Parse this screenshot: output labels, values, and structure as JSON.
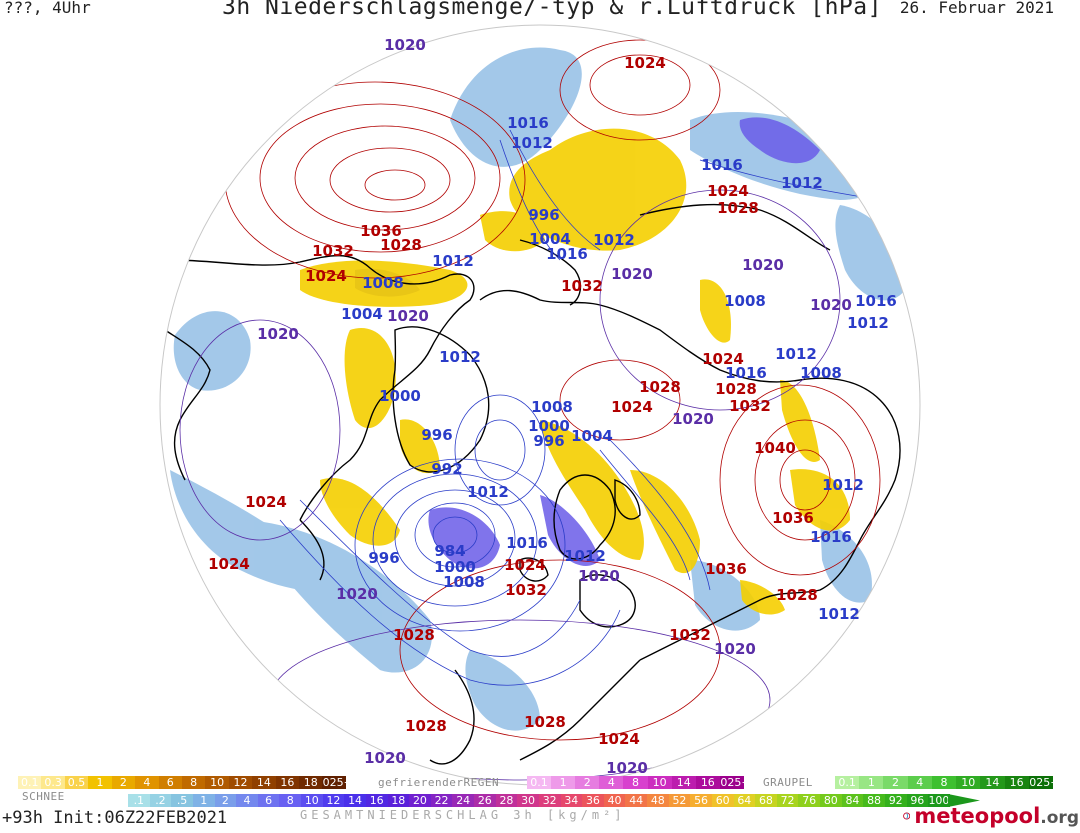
{
  "header": {
    "left": "???, 4Uhr",
    "title": "3h Niederschlagsmenge/-typ & r.Luftdruck [hPa]",
    "date": "26. Februar 2021"
  },
  "map": {
    "isobars": [
      {
        "text": "1020",
        "c": "p"
      },
      {
        "text": "1024",
        "c": "r"
      },
      {
        "text": "1016",
        "c": "b"
      },
      {
        "text": "1012",
        "c": "b"
      },
      {
        "text": "1016",
        "c": "b"
      },
      {
        "text": "1024",
        "c": "r"
      },
      {
        "text": "1012",
        "c": "b"
      },
      {
        "text": "1028",
        "c": "r"
      },
      {
        "text": "996",
        "c": "b"
      },
      {
        "text": "1036",
        "c": "r"
      },
      {
        "text": "1028",
        "c": "r"
      },
      {
        "text": "1004",
        "c": "b"
      },
      {
        "text": "1012",
        "c": "b"
      },
      {
        "text": "1032",
        "c": "r"
      },
      {
        "text": "1016",
        "c": "b"
      },
      {
        "text": "1012",
        "c": "b"
      },
      {
        "text": "1020",
        "c": "p"
      },
      {
        "text": "1024",
        "c": "r"
      },
      {
        "text": "1008",
        "c": "b"
      },
      {
        "text": "1032",
        "c": "r"
      },
      {
        "text": "1020",
        "c": "p"
      },
      {
        "text": "1016",
        "c": "b"
      },
      {
        "text": "1012",
        "c": "b"
      },
      {
        "text": "1004",
        "c": "b"
      },
      {
        "text": "1020",
        "c": "p"
      },
      {
        "text": "1020",
        "c": "p"
      },
      {
        "text": "1008",
        "c": "b"
      },
      {
        "text": "1020",
        "c": "p"
      },
      {
        "text": "1012",
        "c": "b"
      },
      {
        "text": "1024",
        "c": "r"
      },
      {
        "text": "1012",
        "c": "b"
      },
      {
        "text": "1016",
        "c": "b"
      },
      {
        "text": "1008",
        "c": "b"
      },
      {
        "text": "1000",
        "c": "b"
      },
      {
        "text": "1028",
        "c": "r"
      },
      {
        "text": "1028",
        "c": "r"
      },
      {
        "text": "1024",
        "c": "r"
      },
      {
        "text": "1032",
        "c": "r"
      },
      {
        "text": "1008",
        "c": "b"
      },
      {
        "text": "1020",
        "c": "p"
      },
      {
        "text": "1000",
        "c": "b"
      },
      {
        "text": "996",
        "c": "b"
      },
      {
        "text": "1004",
        "c": "b"
      },
      {
        "text": "996",
        "c": "b"
      },
      {
        "text": "1040",
        "c": "r"
      },
      {
        "text": "992",
        "c": "b"
      },
      {
        "text": "1012",
        "c": "b"
      },
      {
        "text": "1024",
        "c": "r"
      },
      {
        "text": "1012",
        "c": "b"
      },
      {
        "text": "1036",
        "c": "r"
      },
      {
        "text": "996",
        "c": "b"
      },
      {
        "text": "984",
        "c": "b"
      },
      {
        "text": "1016",
        "c": "b"
      },
      {
        "text": "1016",
        "c": "b"
      },
      {
        "text": "1000",
        "c": "b"
      },
      {
        "text": "1024",
        "c": "r"
      },
      {
        "text": "1012",
        "c": "b"
      },
      {
        "text": "1024",
        "c": "r"
      },
      {
        "text": "1008",
        "c": "b"
      },
      {
        "text": "1020",
        "c": "p"
      },
      {
        "text": "1036",
        "c": "r"
      },
      {
        "text": "1028",
        "c": "r"
      },
      {
        "text": "1032",
        "c": "r"
      },
      {
        "text": "1012",
        "c": "b"
      },
      {
        "text": "1020",
        "c": "p"
      },
      {
        "text": "1028",
        "c": "r"
      },
      {
        "text": "1032",
        "c": "r"
      },
      {
        "text": "1020",
        "c": "p"
      },
      {
        "text": "1028",
        "c": "r"
      },
      {
        "text": "1028",
        "c": "r"
      },
      {
        "text": "1024",
        "c": "r"
      },
      {
        "text": "1020",
        "c": "p"
      },
      {
        "text": "1020",
        "c": "p"
      }
    ]
  },
  "legend": {
    "snow": {
      "label": "SCHNEE",
      "values": [
        "0.1",
        "0.3",
        "0.5",
        "1",
        "2",
        "4",
        "6",
        "8",
        "10",
        "12",
        "14",
        "16",
        "18",
        "2025+"
      ],
      "colors": [
        "#fef2b6",
        "#fde88c",
        "#f9d24b",
        "#f2c200",
        "#e9a900",
        "#e09300",
        "#d07e00",
        "#c06a00",
        "#b05a00",
        "#a04c00",
        "#904000",
        "#803400",
        "#702a00",
        "#602000"
      ]
    },
    "freezing_rain": {
      "label": "gefrierenderREGEN",
      "values": [
        "0.1",
        "1",
        "2",
        "4",
        "8",
        "10",
        "14",
        "16",
        "2025+"
      ],
      "colors": [
        "#f5b8f2",
        "#ee9ae9",
        "#e67ce0",
        "#df5ed7",
        "#d840ce",
        "#cc2cbf",
        "#bc1cae",
        "#ac0c9c",
        "#9c008c"
      ]
    },
    "graupel": {
      "label": "GRAUPEL",
      "values": [
        "0.1",
        "1",
        "2",
        "4",
        "8",
        "10",
        "14",
        "16",
        "2025+"
      ],
      "colors": [
        "#b6f0a0",
        "#98e684",
        "#7ada68",
        "#5ccd4c",
        "#3ec030",
        "#30ac24",
        "#24981a",
        "#188410",
        "#0c7008"
      ]
    },
    "total": {
      "label": "GESAMTNIEDERSCHLAG 3h [kg/m²]",
      "values": [
        ".1",
        ".2",
        ".5",
        "1",
        "2",
        "4",
        "6",
        "8",
        "10",
        "12",
        "14",
        "16",
        "18",
        "20",
        "22",
        "24",
        "26",
        "28",
        "30",
        "32",
        "34",
        "36",
        "40",
        "44",
        "48",
        "52",
        "56",
        "60",
        "64",
        "68",
        "72",
        "76",
        "80",
        "84",
        "88",
        "92",
        "96",
        "100"
      ],
      "colors": [
        "#a8e0e8",
        "#96d2e4",
        "#86c4e0",
        "#7fb2e6",
        "#7a9eea",
        "#7488ee",
        "#6e72f0",
        "#6860f2",
        "#5c4ef0",
        "#503cee",
        "#4a30ea",
        "#5228e2",
        "#5a20da",
        "#7020d0",
        "#8424c4",
        "#9828b6",
        "#ac2ca8",
        "#c0309a",
        "#d0368c",
        "#dc3e7c",
        "#e6486c",
        "#ec545c",
        "#f06450",
        "#f27448",
        "#f48640",
        "#f59a38",
        "#f6ae30",
        "#f0c22a",
        "#e0d024",
        "#c6d420",
        "#a8d41e",
        "#8ed01c",
        "#74ca1c",
        "#5cc21c",
        "#46ba1c",
        "#34b01c",
        "#26a41c",
        "#1c981c"
      ]
    }
  },
  "footer": {
    "init": "+93h Init:06Z22FEB2021",
    "brand": "meteopool",
    "brand_tld": ".org"
  },
  "colors": {
    "isobar_red": "#b00000",
    "isobar_blue": "#2a3cc8",
    "isobar_purple": "#5a2ea6",
    "snow": "#f2cc00",
    "rain": "#80b0e0",
    "coast": "#000000",
    "brand": "#c4002a"
  }
}
